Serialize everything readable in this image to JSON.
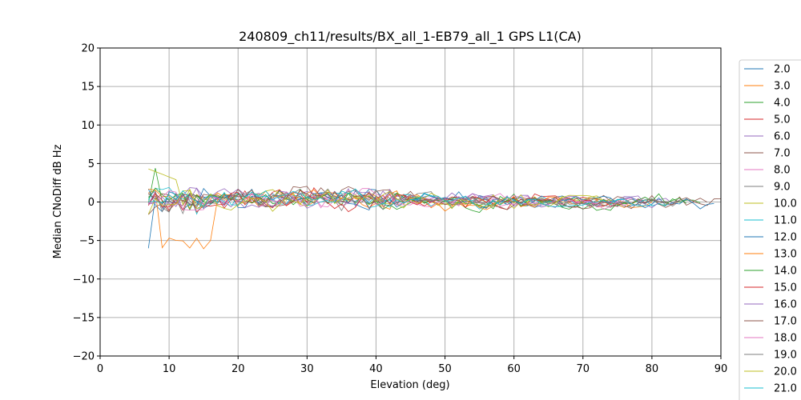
{
  "chart_data": {
    "type": "line",
    "title": "240809_ch11/results/BX_all_1-EB79_all_1 GPS L1(CA)",
    "xlabel": "Elevation (deg)",
    "ylabel": "Median CNoDiff dB Hz",
    "xlim": [
      0,
      90
    ],
    "ylim": [
      -20,
      20
    ],
    "xticks": [
      0,
      10,
      20,
      30,
      40,
      50,
      60,
      70,
      80,
      90
    ],
    "yticks": [
      -20,
      -15,
      -10,
      -5,
      0,
      5,
      10,
      15,
      20
    ],
    "grid": true,
    "legend_position": "right, outside plot",
    "series": [
      {
        "name": "2.0",
        "color": "#1f77b4"
      },
      {
        "name": "3.0",
        "color": "#ff7f0e"
      },
      {
        "name": "4.0",
        "color": "#2ca02c"
      },
      {
        "name": "5.0",
        "color": "#d62728"
      },
      {
        "name": "6.0",
        "color": "#9467bd"
      },
      {
        "name": "7.0",
        "color": "#8c564b"
      },
      {
        "name": "8.0",
        "color": "#e377c2"
      },
      {
        "name": "9.0",
        "color": "#7f7f7f"
      },
      {
        "name": "10.0",
        "color": "#bcbd22"
      },
      {
        "name": "11.0",
        "color": "#17becf"
      },
      {
        "name": "12.0",
        "color": "#1f77b4"
      },
      {
        "name": "13.0",
        "color": "#ff7f0e"
      },
      {
        "name": "14.0",
        "color": "#2ca02c"
      },
      {
        "name": "15.0",
        "color": "#d62728"
      },
      {
        "name": "16.0",
        "color": "#9467bd"
      },
      {
        "name": "17.0",
        "color": "#8c564b"
      },
      {
        "name": "18.0",
        "color": "#e377c2"
      },
      {
        "name": "19.0",
        "color": "#7f7f7f"
      },
      {
        "name": "20.0",
        "color": "#bcbd22"
      },
      {
        "name": "21.0",
        "color": "#17becf"
      }
    ]
  }
}
